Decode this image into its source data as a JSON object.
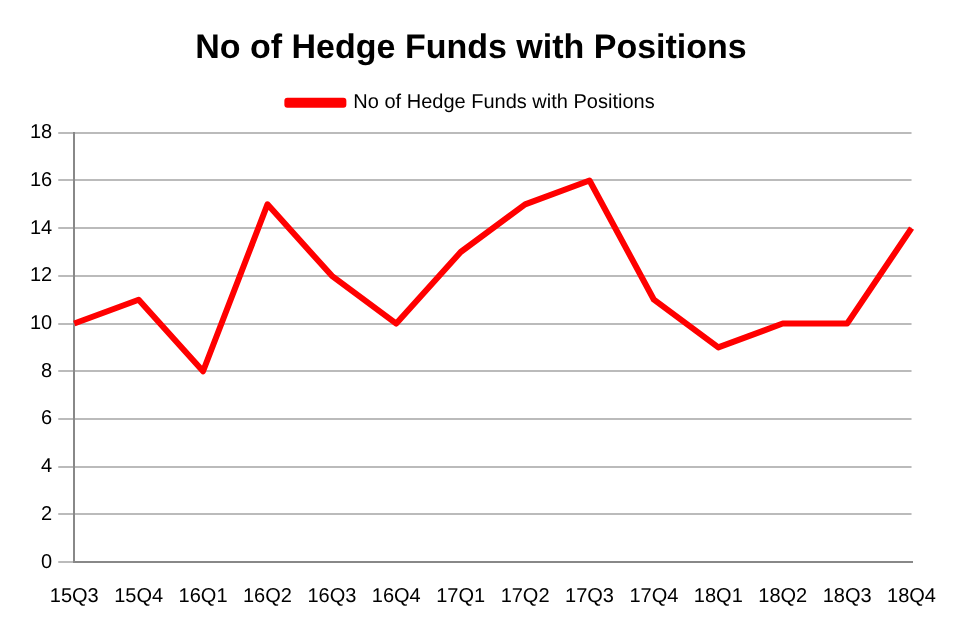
{
  "chart_data": {
    "type": "line",
    "title": "No of Hedge Funds with Positions",
    "categories": [
      "15Q3",
      "15Q4",
      "16Q1",
      "16Q2",
      "16Q3",
      "16Q4",
      "17Q1",
      "17Q2",
      "17Q3",
      "17Q4",
      "18Q1",
      "18Q2",
      "18Q3",
      "18Q4"
    ],
    "series": [
      {
        "name": "No of Hedge Funds with Positions",
        "color": "#ff0000",
        "values": [
          10,
          11,
          8,
          15,
          12,
          10,
          13,
          15,
          16,
          11,
          9,
          10,
          10,
          14
        ]
      }
    ],
    "ylim": [
      0,
      18
    ],
    "yticks": [
      0,
      2,
      4,
      6,
      8,
      10,
      12,
      14,
      16,
      18
    ],
    "grid": "y",
    "legend": "top",
    "marker": "none",
    "line_style": "solid"
  }
}
